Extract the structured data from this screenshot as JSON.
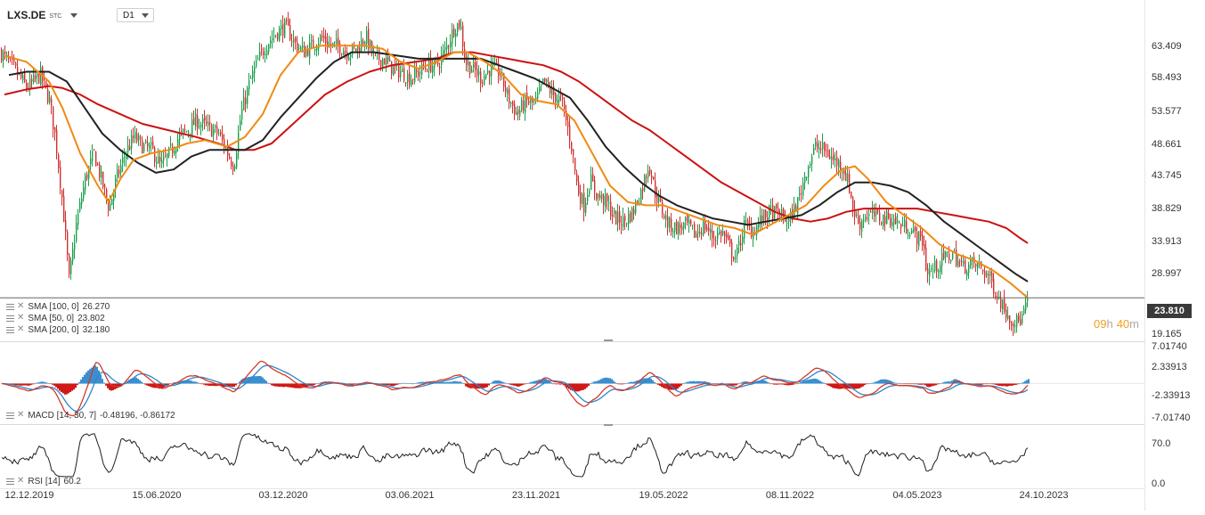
{
  "header": {
    "symbol": "LXS.DE",
    "exchange": "STC",
    "timeframe": "D1"
  },
  "overlays": {
    "sma100": {
      "label": "SMA [100, 0]",
      "value": "26.270",
      "color": "#222222"
    },
    "sma50": {
      "label": "SMA [50, 0]",
      "value": "23.802",
      "color": "#f08a14"
    },
    "sma200": {
      "label": "SMA [200, 0]",
      "value": "32.180",
      "color": "#cc1111"
    }
  },
  "last_price": "23.810",
  "countdown": {
    "hours": "09",
    "h": "h",
    "minutes": "40",
    "m": "m"
  },
  "macd": {
    "label": "MACD [14, 30, 7]",
    "values": "-0.48196, -0.86172"
  },
  "rsi": {
    "label": "RSI [14]",
    "value": "60.2"
  },
  "colors": {
    "up": "#1a9e4a",
    "down": "#d32f2f",
    "macd_line": "#d23a2a",
    "signal_line": "#2f86c8",
    "hist_pos": "#3a8fd0",
    "hist_neg": "#d01818",
    "price_line": "#666666"
  },
  "chart_data": {
    "type": "candlestick",
    "price_axis": {
      "ticks": [
        "63.409",
        "58.493",
        "53.577",
        "48.661",
        "43.745",
        "38.829",
        "33.913",
        "28.997",
        "19.165"
      ],
      "range": [
        17.0,
        67.6
      ]
    },
    "x_axis": {
      "ticks": [
        "12.12.2019",
        "15.06.2020",
        "03.12.2020",
        "03.06.2021",
        "23.11.2021",
        "19.05.2022",
        "08.11.2022",
        "04.05.2023",
        "24.10.2023"
      ]
    },
    "price_path": [
      [
        0,
        61.5
      ],
      [
        15,
        59.0
      ],
      [
        30,
        56.0
      ],
      [
        45,
        58.0
      ],
      [
        55,
        54.0
      ],
      [
        62,
        48.0
      ],
      [
        70,
        38.0
      ],
      [
        77,
        26.5
      ],
      [
        85,
        35.0
      ],
      [
        95,
        42.0
      ],
      [
        105,
        46.0
      ],
      [
        115,
        41.0
      ],
      [
        122,
        37.5
      ],
      [
        130,
        42.0
      ],
      [
        140,
        46.0
      ],
      [
        150,
        48.5
      ],
      [
        160,
        47.0
      ],
      [
        170,
        46.5
      ],
      [
        180,
        44.0
      ],
      [
        190,
        46.0
      ],
      [
        200,
        48.5
      ],
      [
        210,
        49.5
      ],
      [
        220,
        51.0
      ],
      [
        232,
        50.0
      ],
      [
        245,
        49.0
      ],
      [
        255,
        46.0
      ],
      [
        262,
        44.0
      ],
      [
        270,
        52.0
      ],
      [
        280,
        57.0
      ],
      [
        290,
        60.5
      ],
      [
        300,
        63.0
      ],
      [
        310,
        64.5
      ],
      [
        320,
        65.5
      ],
      [
        330,
        63.0
      ],
      [
        340,
        61.5
      ],
      [
        350,
        62.5
      ],
      [
        360,
        63.8
      ],
      [
        370,
        62.5
      ],
      [
        380,
        62.5
      ],
      [
        390,
        61.5
      ],
      [
        400,
        62.0
      ],
      [
        410,
        64.0
      ],
      [
        420,
        60.5
      ],
      [
        430,
        60.5
      ],
      [
        440,
        59.0
      ],
      [
        450,
        58.5
      ],
      [
        460,
        57.5
      ],
      [
        470,
        58.5
      ],
      [
        480,
        59.5
      ],
      [
        490,
        59.5
      ],
      [
        500,
        62.0
      ],
      [
        510,
        65.5
      ],
      [
        516,
        66.0
      ],
      [
        522,
        60.0
      ],
      [
        530,
        59.0
      ],
      [
        540,
        57.5
      ],
      [
        550,
        59.0
      ],
      [
        560,
        58.5
      ],
      [
        570,
        54.5
      ],
      [
        580,
        52.0
      ],
      [
        590,
        54.0
      ],
      [
        600,
        53.5
      ],
      [
        610,
        57.0
      ],
      [
        620,
        55.0
      ],
      [
        630,
        54.0
      ],
      [
        640,
        48.0
      ],
      [
        648,
        40.5
      ],
      [
        655,
        38.0
      ],
      [
        662,
        42.0
      ],
      [
        670,
        39.5
      ],
      [
        680,
        38.5
      ],
      [
        690,
        36.0
      ],
      [
        700,
        35.5
      ],
      [
        710,
        37.0
      ],
      [
        720,
        40.5
      ],
      [
        728,
        44.5
      ],
      [
        735,
        40.0
      ],
      [
        742,
        37.5
      ],
      [
        750,
        35.0
      ],
      [
        760,
        34.5
      ],
      [
        770,
        35.0
      ],
      [
        780,
        33.5
      ],
      [
        790,
        35.0
      ],
      [
        800,
        33.0
      ],
      [
        810,
        34.0
      ],
      [
        820,
        31.0
      ],
      [
        826,
        30.0
      ],
      [
        835,
        35.0
      ],
      [
        845,
        34.0
      ],
      [
        855,
        36.0
      ],
      [
        865,
        37.0
      ],
      [
        875,
        36.5
      ],
      [
        885,
        35.5
      ],
      [
        895,
        38.5
      ],
      [
        905,
        43.5
      ],
      [
        915,
        47.0
      ],
      [
        925,
        46.5
      ],
      [
        935,
        45.0
      ],
      [
        945,
        44.0
      ],
      [
        952,
        41.5
      ],
      [
        958,
        37.0
      ],
      [
        964,
        35.0
      ],
      [
        970,
        36.5
      ],
      [
        980,
        36.5
      ],
      [
        990,
        36.0
      ],
      [
        1000,
        36.0
      ],
      [
        1010,
        35.0
      ],
      [
        1020,
        34.5
      ],
      [
        1030,
        33.0
      ],
      [
        1036,
        32.5
      ],
      [
        1040,
        27.5
      ],
      [
        1050,
        28.5
      ],
      [
        1060,
        30.0
      ],
      [
        1070,
        30.5
      ],
      [
        1080,
        28.5
      ],
      [
        1090,
        29.0
      ],
      [
        1100,
        28.5
      ],
      [
        1110,
        27.0
      ],
      [
        1120,
        24.0
      ],
      [
        1128,
        22.0
      ],
      [
        1135,
        20.5
      ],
      [
        1142,
        20.0
      ],
      [
        1148,
        21.0
      ],
      [
        1154,
        23.8
      ]
    ],
    "sma50_path": [
      [
        5,
        61.0
      ],
      [
        30,
        60.0
      ],
      [
        55,
        57.0
      ],
      [
        70,
        53.0
      ],
      [
        90,
        46.0
      ],
      [
        110,
        41.0
      ],
      [
        122,
        38.5
      ],
      [
        135,
        42.0
      ],
      [
        150,
        45.0
      ],
      [
        170,
        46.0
      ],
      [
        190,
        46.5
      ],
      [
        210,
        47.5
      ],
      [
        230,
        48.0
      ],
      [
        255,
        47.0
      ],
      [
        275,
        48.5
      ],
      [
        295,
        52.0
      ],
      [
        315,
        58.0
      ],
      [
        335,
        61.5
      ],
      [
        360,
        62.5
      ],
      [
        385,
        62.5
      ],
      [
        410,
        62.5
      ],
      [
        430,
        62.0
      ],
      [
        450,
        60.0
      ],
      [
        470,
        59.0
      ],
      [
        490,
        60.0
      ],
      [
        510,
        61.5
      ],
      [
        525,
        61.5
      ],
      [
        545,
        60.0
      ],
      [
        565,
        58.0
      ],
      [
        585,
        55.0
      ],
      [
        605,
        54.0
      ],
      [
        625,
        53.5
      ],
      [
        645,
        51.0
      ],
      [
        665,
        46.0
      ],
      [
        685,
        41.0
      ],
      [
        705,
        38.5
      ],
      [
        725,
        38.0
      ],
      [
        745,
        38.0
      ],
      [
        765,
        37.0
      ],
      [
        785,
        36.0
      ],
      [
        805,
        35.0
      ],
      [
        825,
        34.5
      ],
      [
        845,
        33.5
      ],
      [
        865,
        35.0
      ],
      [
        885,
        36.5
      ],
      [
        905,
        38.0
      ],
      [
        925,
        41.0
      ],
      [
        945,
        43.5
      ],
      [
        960,
        44.0
      ],
      [
        975,
        42.0
      ],
      [
        995,
        38.5
      ],
      [
        1015,
        36.5
      ],
      [
        1035,
        34.5
      ],
      [
        1055,
        32.0
      ],
      [
        1075,
        30.5
      ],
      [
        1095,
        29.5
      ],
      [
        1115,
        28.0
      ],
      [
        1135,
        26.0
      ],
      [
        1154,
        23.8
      ]
    ],
    "sma100_path": [
      [
        10,
        58.0
      ],
      [
        30,
        58.5
      ],
      [
        55,
        58.5
      ],
      [
        75,
        57.0
      ],
      [
        95,
        53.0
      ],
      [
        115,
        49.0
      ],
      [
        135,
        46.5
      ],
      [
        155,
        44.5
      ],
      [
        175,
        43.0
      ],
      [
        195,
        43.5
      ],
      [
        215,
        45.5
      ],
      [
        235,
        46.5
      ],
      [
        255,
        46.5
      ],
      [
        275,
        46.5
      ],
      [
        295,
        48.0
      ],
      [
        315,
        51.5
      ],
      [
        335,
        54.5
      ],
      [
        355,
        57.5
      ],
      [
        375,
        60.0
      ],
      [
        395,
        61.5
      ],
      [
        420,
        61.5
      ],
      [
        445,
        61.0
      ],
      [
        470,
        60.5
      ],
      [
        495,
        60.5
      ],
      [
        520,
        60.5
      ],
      [
        540,
        60.5
      ],
      [
        560,
        59.5
      ],
      [
        580,
        58.5
      ],
      [
        600,
        57.5
      ],
      [
        620,
        56.0
      ],
      [
        640,
        54.5
      ],
      [
        660,
        51.0
      ],
      [
        680,
        47.0
      ],
      [
        700,
        44.0
      ],
      [
        720,
        41.5
      ],
      [
        740,
        39.5
      ],
      [
        760,
        38.0
      ],
      [
        780,
        37.0
      ],
      [
        800,
        36.0
      ],
      [
        820,
        35.5
      ],
      [
        840,
        35.0
      ],
      [
        860,
        35.5
      ],
      [
        880,
        36.0
      ],
      [
        900,
        36.5
      ],
      [
        920,
        38.0
      ],
      [
        940,
        40.0
      ],
      [
        960,
        41.5
      ],
      [
        980,
        41.5
      ],
      [
        1000,
        41.0
      ],
      [
        1020,
        40.0
      ],
      [
        1040,
        38.0
      ],
      [
        1060,
        35.5
      ],
      [
        1080,
        33.5
      ],
      [
        1100,
        31.5
      ],
      [
        1120,
        29.5
      ],
      [
        1140,
        27.5
      ],
      [
        1154,
        26.3
      ]
    ],
    "sma200_path": [
      [
        5,
        55.0
      ],
      [
        30,
        55.8
      ],
      [
        55,
        56.3
      ],
      [
        70,
        56.0
      ],
      [
        90,
        55.0
      ],
      [
        110,
        53.5
      ],
      [
        135,
        52.0
      ],
      [
        160,
        50.5
      ],
      [
        190,
        49.5
      ],
      [
        220,
        48.5
      ],
      [
        245,
        47.5
      ],
      [
        265,
        46.5
      ],
      [
        285,
        46.5
      ],
      [
        305,
        47.5
      ],
      [
        325,
        50.0
      ],
      [
        345,
        52.5
      ],
      [
        365,
        55.0
      ],
      [
        390,
        57.0
      ],
      [
        415,
        58.5
      ],
      [
        440,
        59.5
      ],
      [
        465,
        60.0
      ],
      [
        490,
        60.5
      ],
      [
        510,
        61.5
      ],
      [
        530,
        61.5
      ],
      [
        550,
        61.0
      ],
      [
        570,
        60.5
      ],
      [
        590,
        60.0
      ],
      [
        610,
        59.5
      ],
      [
        630,
        58.5
      ],
      [
        650,
        57.0
      ],
      [
        670,
        55.0
      ],
      [
        690,
        53.0
      ],
      [
        710,
        51.0
      ],
      [
        730,
        49.5
      ],
      [
        750,
        47.5
      ],
      [
        770,
        45.5
      ],
      [
        790,
        43.5
      ],
      [
        810,
        41.5
      ],
      [
        830,
        40.0
      ],
      [
        850,
        38.5
      ],
      [
        870,
        37.0
      ],
      [
        890,
        36.0
      ],
      [
        910,
        35.5
      ],
      [
        930,
        36.0
      ],
      [
        950,
        37.0
      ],
      [
        970,
        37.5
      ],
      [
        990,
        37.5
      ],
      [
        1010,
        37.5
      ],
      [
        1030,
        37.5
      ],
      [
        1050,
        37.0
      ],
      [
        1070,
        36.5
      ],
      [
        1090,
        36.0
      ],
      [
        1110,
        35.5
      ],
      [
        1130,
        34.5
      ],
      [
        1145,
        33.0
      ],
      [
        1154,
        32.2
      ]
    ],
    "macd_axis": {
      "ticks": [
        "7.01740",
        "2.33913",
        "-2.33913",
        "-7.01740"
      ],
      "range": [
        -7.0174,
        7.0174
      ]
    },
    "rsi_axis": {
      "ticks": [
        "70.0",
        "0.0"
      ],
      "range": [
        0,
        100
      ]
    }
  }
}
